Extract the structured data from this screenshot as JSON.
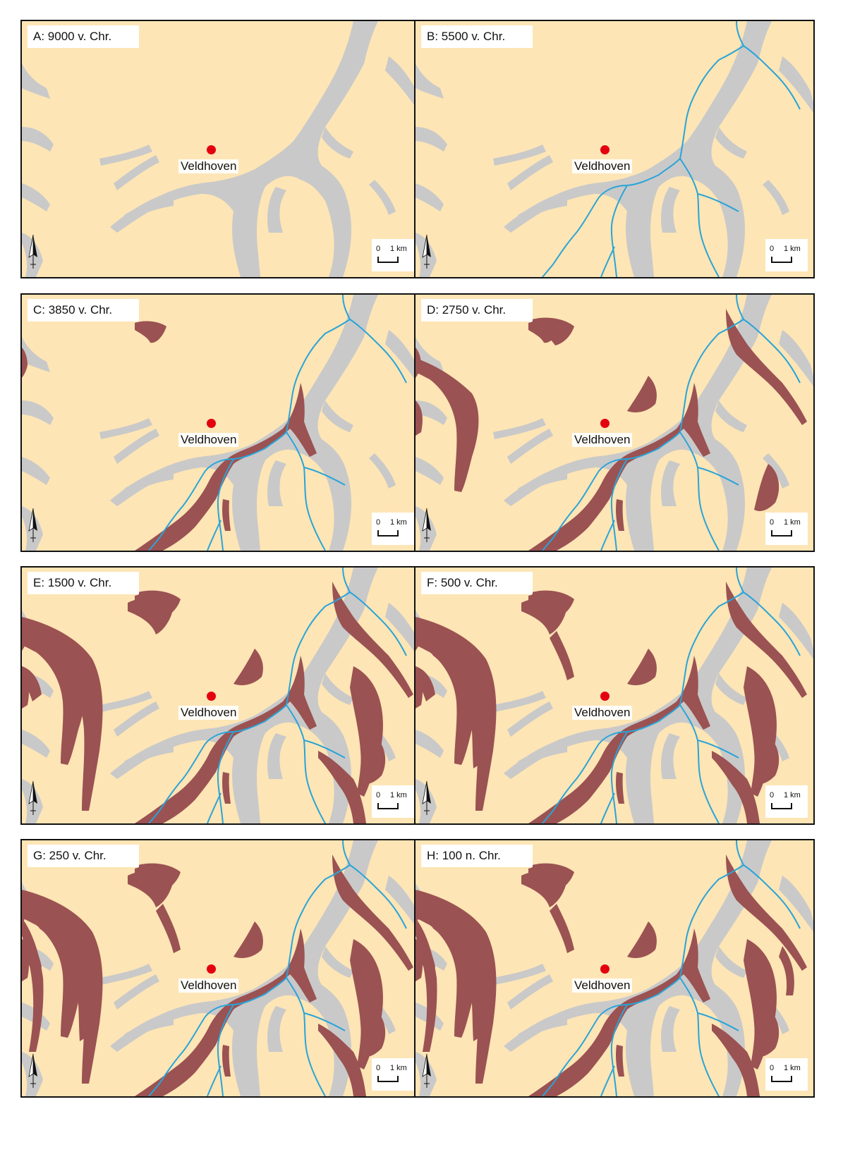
{
  "place_name": "Veldhoven",
  "scale": {
    "zero": "0",
    "one": "1 km"
  },
  "panels": [
    {
      "label": "A: 9000 v. Chr.",
      "stage": 0
    },
    {
      "label": "B: 5500 v. Chr.",
      "stage": 1
    },
    {
      "label": "C: 3850 v. Chr.",
      "stage": 2
    },
    {
      "label": "D: 2750 v. Chr.",
      "stage": 3
    },
    {
      "label": "E: 1500 v. Chr.",
      "stage": 4
    },
    {
      "label": "F: 500 v. Chr.",
      "stage": 5
    },
    {
      "label": "G: 250 v. Chr.",
      "stage": 6
    },
    {
      "label": "H: 100 n. Chr.",
      "stage": 7
    }
  ],
  "colors": {
    "land": "#fde5b5",
    "valley": "#c9c9c9",
    "peat": "#9b5252",
    "stream": "#2aa4d8",
    "place_marker": "#e3000f"
  }
}
